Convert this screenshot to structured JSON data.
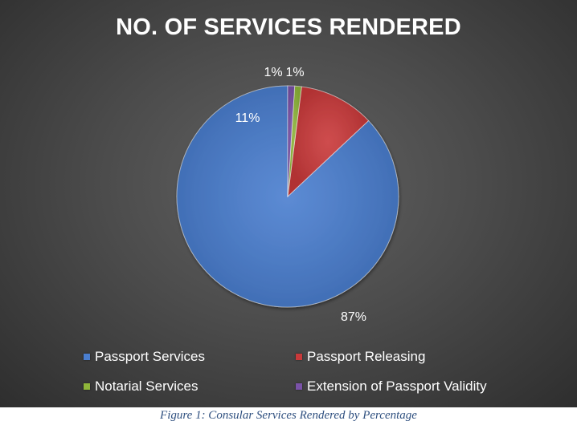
{
  "chart_data": {
    "type": "pie",
    "title": "NO. OF SERVICES RENDERED",
    "categories": [
      "Passport Services",
      "Passport Releasing",
      "Notarial Services",
      "Extension of Passport Validity"
    ],
    "values": [
      87,
      11,
      1,
      1
    ],
    "data_labels": [
      "87%",
      "11%",
      "1%",
      "1%"
    ],
    "colors": [
      "#4a7ecf",
      "#c9393a",
      "#8fb63a",
      "#7a52a8"
    ],
    "legend_position": "bottom"
  },
  "caption": "Figure 1: Consular Services Rendered by Percentage"
}
